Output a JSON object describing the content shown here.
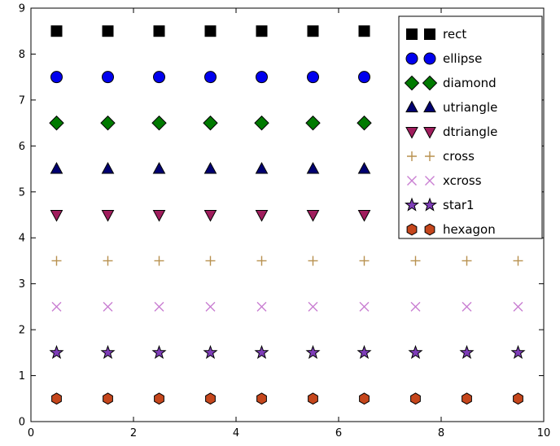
{
  "figure": {
    "background": "#ffffff",
    "frame_color": "#000000",
    "tick_color": "#000000"
  },
  "chart_data": {
    "type": "scatter",
    "title": "",
    "xlabel": "",
    "ylabel": "",
    "xlim": [
      0,
      10
    ],
    "ylim": [
      0,
      9
    ],
    "x_ticks": [
      0,
      2,
      4,
      6,
      8,
      10
    ],
    "y_ticks": [
      0,
      1,
      2,
      3,
      4,
      5,
      6,
      7,
      8,
      9
    ],
    "grid": false,
    "x_points": [
      0.5,
      1.5,
      2.5,
      3.5,
      4.5,
      5.5,
      6.5,
      7.5,
      8.5,
      9.5
    ],
    "series": [
      {
        "name": "rect",
        "marker": "square",
        "y": 8.5,
        "color": "#000000",
        "edge": "#000000"
      },
      {
        "name": "ellipse",
        "marker": "circle",
        "y": 7.5,
        "color": "#0000ee",
        "edge": "#000000"
      },
      {
        "name": "diamond",
        "marker": "diamond",
        "y": 6.5,
        "color": "#007a00",
        "edge": "#000000"
      },
      {
        "name": "utriangle",
        "marker": "triangle-up",
        "y": 5.5,
        "color": "#000070",
        "edge": "#000000"
      },
      {
        "name": "dtriangle",
        "marker": "triangle-down",
        "y": 4.5,
        "color": "#a01d5d",
        "edge": "#000000"
      },
      {
        "name": "cross",
        "marker": "plus",
        "y": 3.5,
        "color": "#b8914f",
        "edge": "none"
      },
      {
        "name": "xcross",
        "marker": "x",
        "y": 2.5,
        "color": "#c97fd2",
        "edge": "none"
      },
      {
        "name": "star1",
        "marker": "star",
        "y": 1.5,
        "color": "#7e3db8",
        "edge": "#000000"
      },
      {
        "name": "hexagon",
        "marker": "hexagon",
        "y": 0.5,
        "color": "#c5461c",
        "edge": "#000000"
      }
    ],
    "legend": {
      "position": "upper right",
      "numpoints": 2,
      "background": "#ffffff",
      "border_color": "#000000",
      "entries": [
        "rect",
        "ellipse",
        "diamond",
        "utriangle",
        "dtriangle",
        "cross",
        "xcross",
        "star1",
        "hexagon"
      ]
    }
  }
}
